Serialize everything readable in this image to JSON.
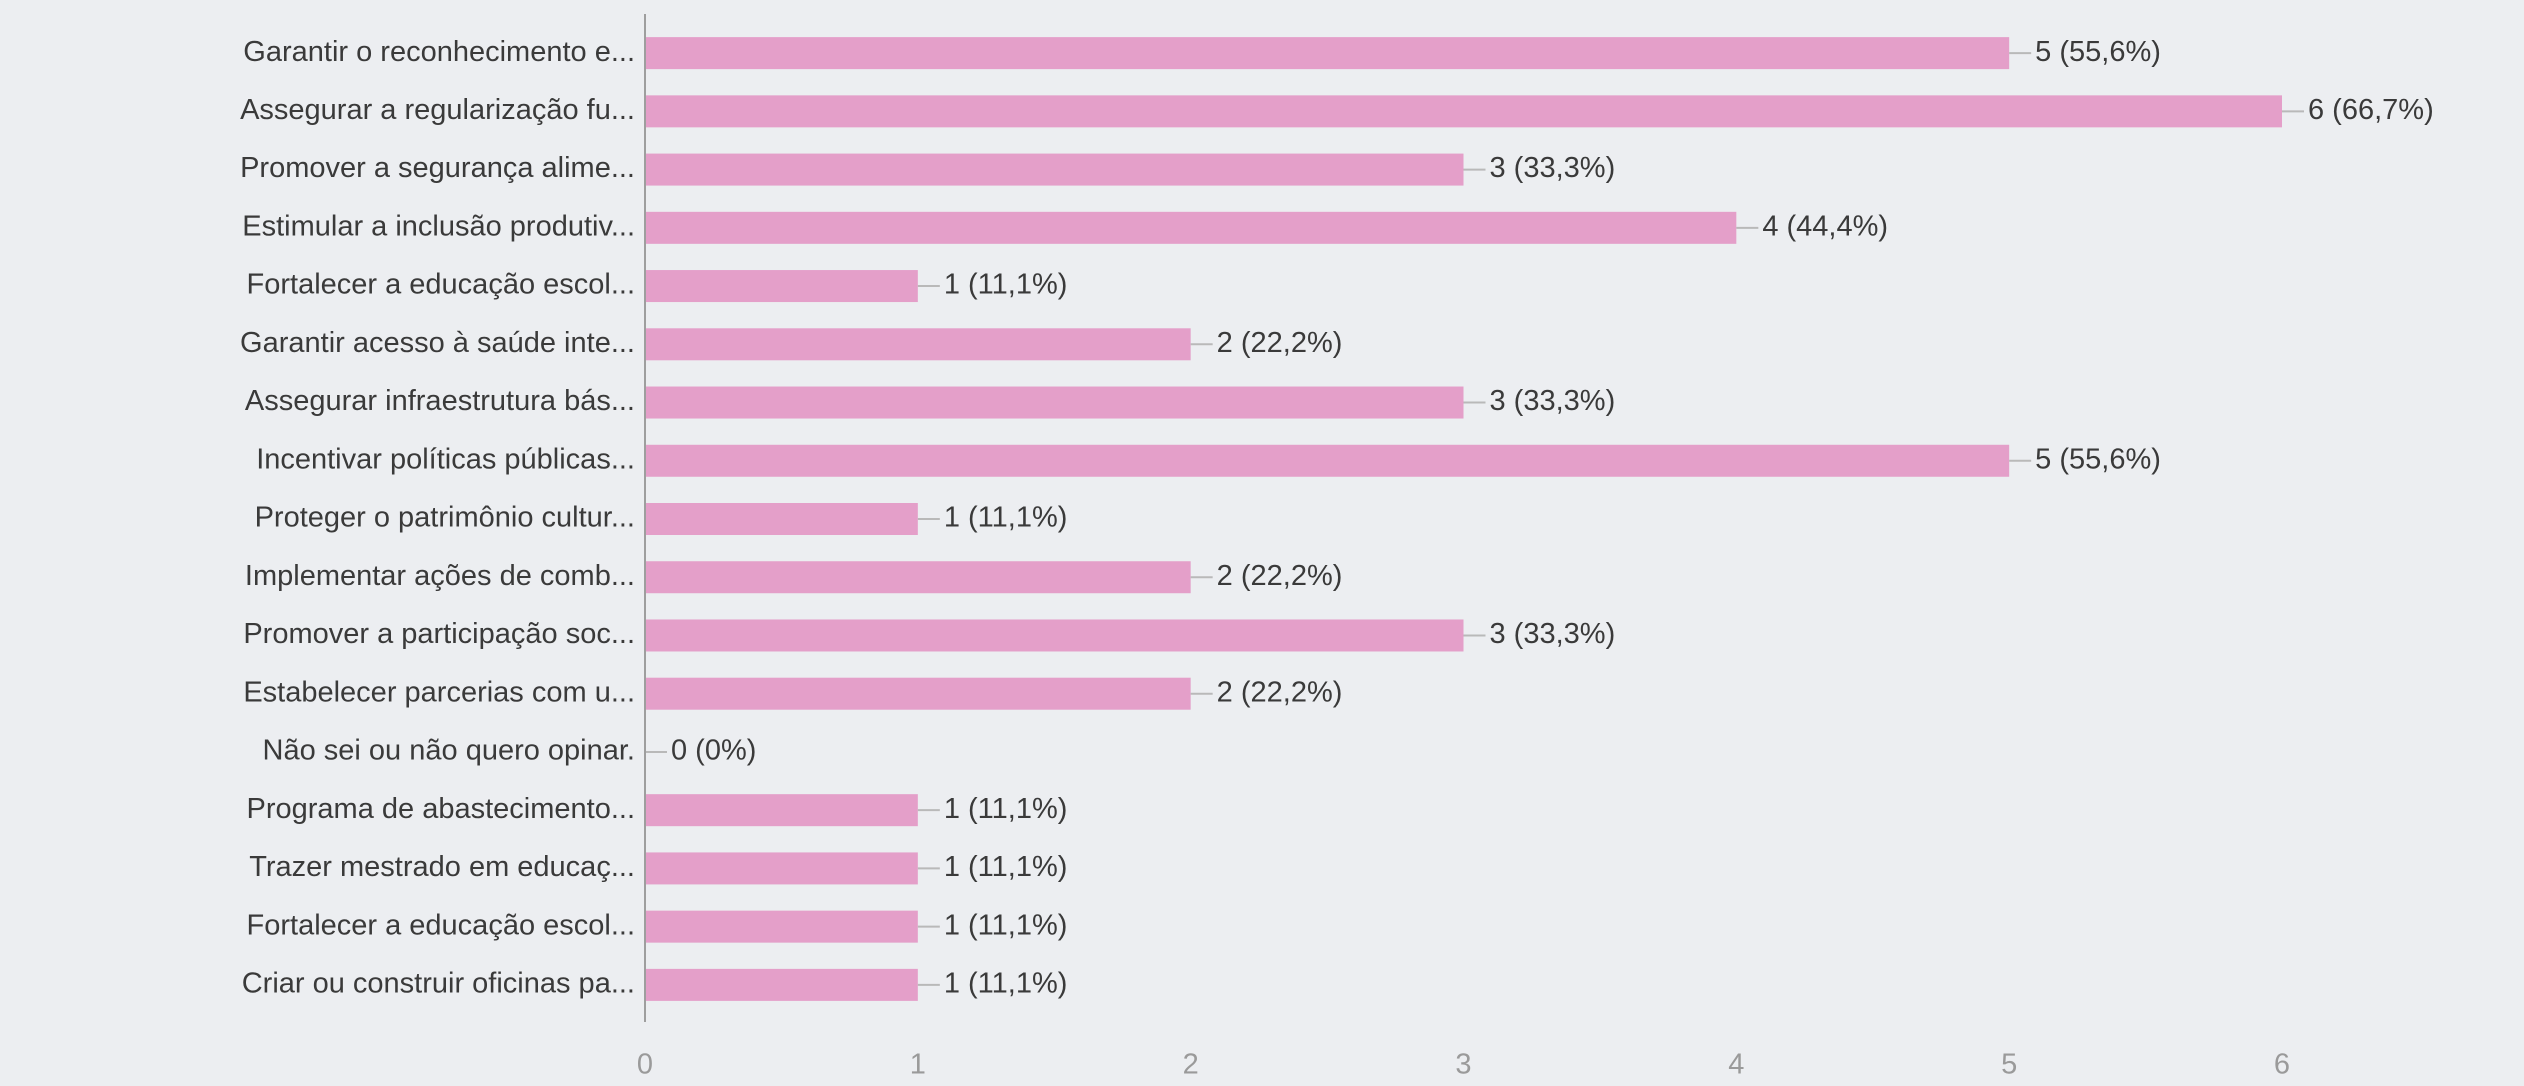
{
  "chart_data": {
    "type": "bar",
    "orientation": "horizontal",
    "categories": [
      "Garantir o reconhecimento e...",
      "Assegurar a regularização fu...",
      "Promover a segurança alime...",
      "Estimular a inclusão produtiv...",
      "Fortalecer a educação escol...",
      "Garantir acesso à saúde inte...",
      "Assegurar infraestrutura bás...",
      "Incentivar políticas públicas...",
      "Proteger o patrimônio cultur...",
      "Implementar ações de comb...",
      "Promover a participação soc...",
      "Estabelecer parcerias com u...",
      "Não sei ou não quero opinar.",
      "Programa de abastecimento...",
      "Trazer mestrado em educaç...",
      "Fortalecer a educação escol...",
      "Criar ou construir oficinas pa..."
    ],
    "values": [
      5,
      6,
      3,
      4,
      1,
      2,
      3,
      5,
      1,
      2,
      3,
      2,
      0,
      1,
      1,
      1,
      1
    ],
    "value_labels": [
      "5 (55,6%)",
      "6 (66,7%)",
      "3 (33,3%)",
      "4 (44,4%)",
      "1 (11,1%)",
      "2 (22,2%)",
      "3 (33,3%)",
      "5 (55,6%)",
      "1 (11,1%)",
      "2 (22,2%)",
      "3 (33,3%)",
      "2 (22,2%)",
      "0 (0%)",
      "1 (11,1%)",
      "1 (11,1%)",
      "1 (11,1%)",
      "1 (11,1%)"
    ],
    "color": "#e49fc9",
    "xlim": [
      0,
      6
    ],
    "xticks": [
      0,
      1,
      2,
      3,
      4,
      5,
      6
    ],
    "grid": false
  }
}
